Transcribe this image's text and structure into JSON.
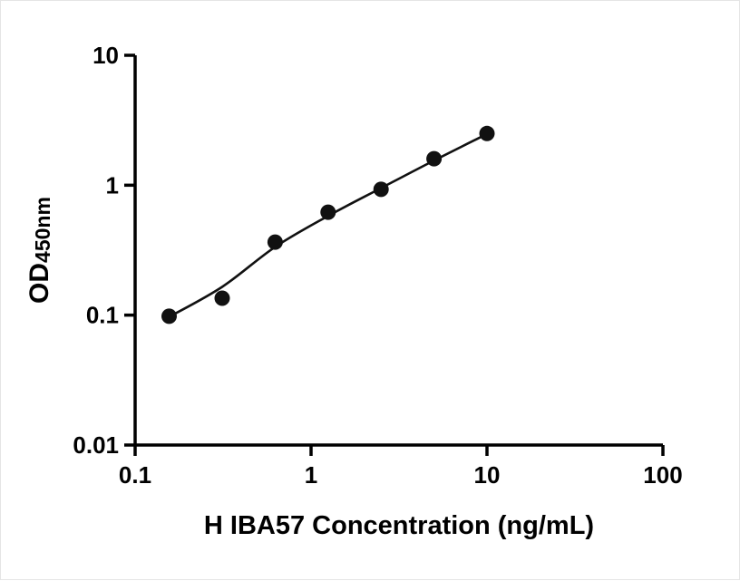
{
  "chart_data": {
    "type": "scatter",
    "title": "",
    "xlabel": "H IBA57 Concentration (ng/mL)",
    "ylabel_main": "OD",
    "ylabel_sub": "450nm",
    "x_scale": "log",
    "y_scale": "log",
    "xlim": [
      0.1,
      100
    ],
    "ylim": [
      0.01,
      10
    ],
    "grid": false,
    "legend": "none",
    "x_ticks": [
      {
        "value": 0.1,
        "label": "0.1"
      },
      {
        "value": 1,
        "label": "1"
      },
      {
        "value": 10,
        "label": "10"
      },
      {
        "value": 100,
        "label": "100"
      }
    ],
    "y_ticks": [
      {
        "value": 0.01,
        "label": "0.01"
      },
      {
        "value": 0.1,
        "label": "0.1"
      },
      {
        "value": 1,
        "label": "1"
      },
      {
        "value": 10,
        "label": "10"
      }
    ],
    "points": [
      {
        "x": 0.156,
        "y": 0.098
      },
      {
        "x": 0.3125,
        "y": 0.135
      },
      {
        "x": 0.625,
        "y": 0.365
      },
      {
        "x": 1.25,
        "y": 0.62
      },
      {
        "x": 2.5,
        "y": 0.93
      },
      {
        "x": 5,
        "y": 1.6
      },
      {
        "x": 10,
        "y": 2.5
      }
    ],
    "fit_curve": [
      {
        "x": 0.156,
        "y": 0.097
      },
      {
        "x": 0.3125,
        "y": 0.165
      },
      {
        "x": 0.625,
        "y": 0.335
      },
      {
        "x": 1.25,
        "y": 0.58
      },
      {
        "x": 2.5,
        "y": 0.95
      },
      {
        "x": 5,
        "y": 1.55
      },
      {
        "x": 10,
        "y": 2.48
      }
    ],
    "marker_color": "#111111",
    "line_color": "#111111",
    "axis_color": "#000000"
  }
}
